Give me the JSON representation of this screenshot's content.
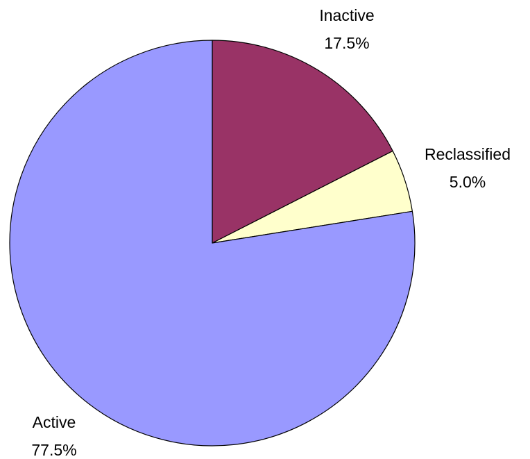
{
  "chart_data": {
    "type": "pie",
    "title": "",
    "categories": [
      "Inactive",
      "Reclassified",
      "Active"
    ],
    "values": [
      17.5,
      5.0,
      77.5
    ],
    "value_labels": [
      "17.5%",
      "5.0%",
      "77.5%"
    ],
    "colors": [
      "#993366",
      "#FFFFCC",
      "#9999FF"
    ],
    "start_angle_deg": 0,
    "direction": "clockwise",
    "legend": "none"
  }
}
